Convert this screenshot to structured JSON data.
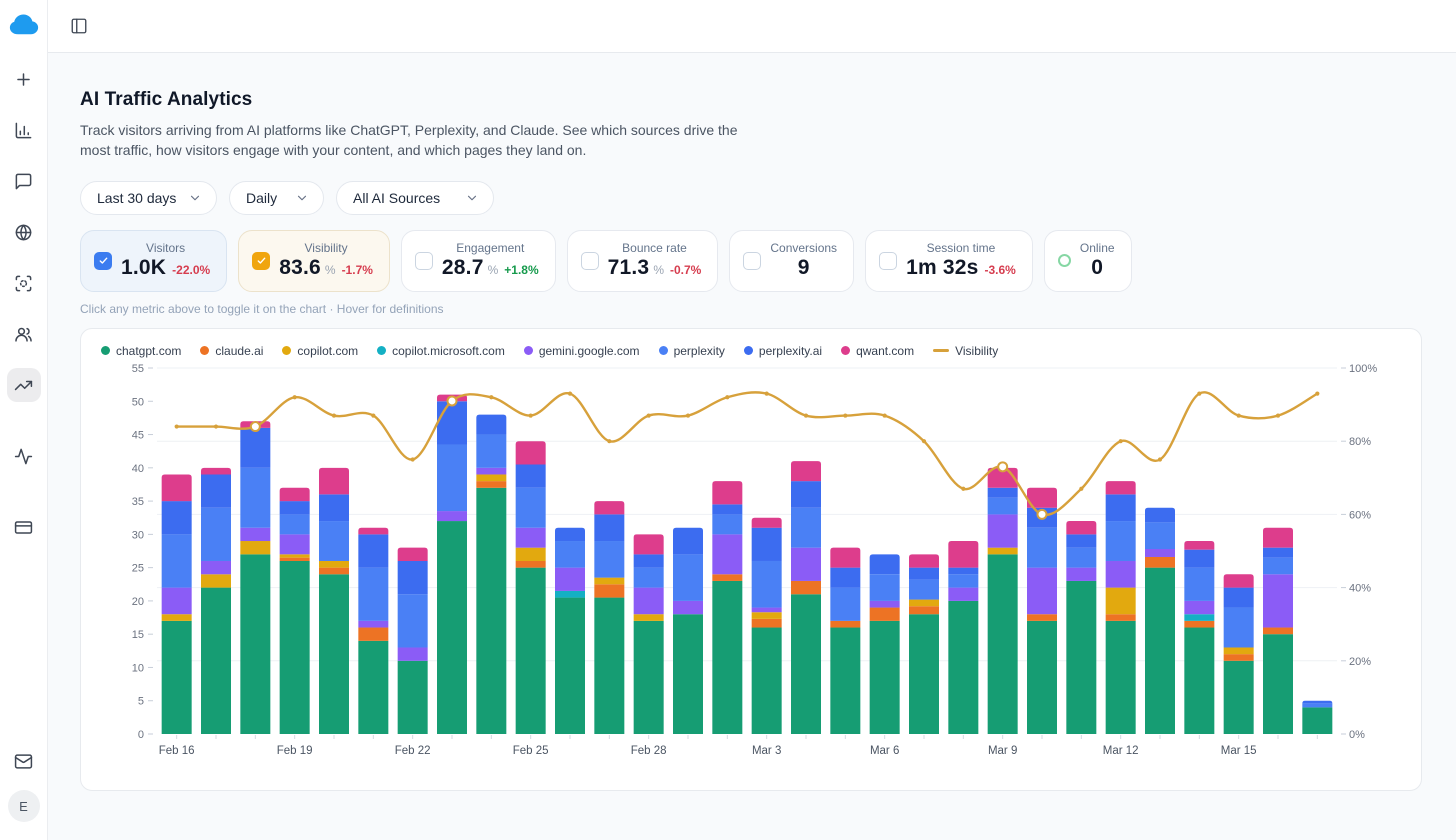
{
  "topbar": {
    "panel_toggle_icon": "panel-left-icon"
  },
  "sidebar": {
    "logo_icon": "cloud-logo",
    "logo_color": "#1e9bef",
    "icons": [
      "plus-icon",
      "chart-column-icon",
      "message-square-icon",
      "globe-icon",
      "focus-scan-icon",
      "users-icon",
      "trending-up-icon",
      "activity-icon",
      "credit-card-icon",
      "mail-icon"
    ],
    "active_icon": "trending-up-icon",
    "avatar_initial": "E"
  },
  "header": {
    "title": "AI Traffic Analytics",
    "description": "Track visitors arriving from AI platforms like ChatGPT, Perplexity, and Claude. See which sources drive the most traffic, how visitors engage with your content, and which pages they land on.",
    "filters": [
      {
        "label": "Last 30 days"
      },
      {
        "label": "Daily"
      },
      {
        "label": "All AI Sources"
      }
    ]
  },
  "metrics": {
    "hint": "Click any metric above to toggle it on the chart · Hover for definitions",
    "cards": [
      {
        "label": "Visitors",
        "value": "1.0K",
        "suffix": "",
        "delta": "-22.0%",
        "trend": "down",
        "control": "checkbox",
        "checked": true,
        "accent": "#3b7cf0",
        "selected_style": "blue"
      },
      {
        "label": "Visibility",
        "value": "83.6",
        "suffix": "%",
        "delta": "-1.7%",
        "trend": "down",
        "control": "checkbox",
        "checked": true,
        "accent": "#f0a50e",
        "selected_style": "amber"
      },
      {
        "label": "Engagement",
        "value": "28.7",
        "suffix": "%",
        "delta": "+1.8%",
        "trend": "up",
        "control": "checkbox",
        "checked": false
      },
      {
        "label": "Bounce rate",
        "value": "71.3",
        "suffix": "%",
        "delta": "-0.7%",
        "trend": "down",
        "control": "checkbox",
        "checked": false
      },
      {
        "label": "Conversions",
        "value": "9",
        "suffix": "",
        "delta": "",
        "trend": "",
        "control": "checkbox",
        "checked": false
      },
      {
        "label": "Session time",
        "value": "1m 32s",
        "suffix": "",
        "delta": "-3.6%",
        "trend": "down",
        "control": "checkbox",
        "checked": false
      },
      {
        "label": "Online",
        "value": "0",
        "suffix": "",
        "delta": "",
        "trend": "",
        "control": "status-ring",
        "ring_color": "#86d7a4"
      }
    ]
  },
  "chart_data": {
    "type": "bar",
    "subtype": "stacked-bars-with-line-overlay",
    "categories": [
      "Feb 16",
      "Feb 17",
      "Feb 18",
      "Feb 19",
      "Feb 20",
      "Feb 21",
      "Feb 22",
      "Feb 23",
      "Feb 24",
      "Feb 25",
      "Feb 26",
      "Feb 27",
      "Feb 28",
      "Mar 1",
      "Mar 2",
      "Mar 3",
      "Mar 4",
      "Mar 5",
      "Mar 6",
      "Mar 7",
      "Mar 8",
      "Mar 9",
      "Mar 10",
      "Mar 11",
      "Mar 12",
      "Mar 13",
      "Mar 14",
      "Mar 15",
      "Mar 16",
      "Mar 17"
    ],
    "x_ticks": [
      {
        "index": 0,
        "label": "Feb 16"
      },
      {
        "index": 3,
        "label": "Feb 19"
      },
      {
        "index": 6,
        "label": "Feb 22"
      },
      {
        "index": 9,
        "label": "Feb 25"
      },
      {
        "index": 12,
        "label": "Feb 28"
      },
      {
        "index": 15,
        "label": "Mar 3"
      },
      {
        "index": 18,
        "label": "Mar 6"
      },
      {
        "index": 21,
        "label": "Mar 9"
      },
      {
        "index": 24,
        "label": "Mar 12"
      },
      {
        "index": 27,
        "label": "Mar 15"
      }
    ],
    "series": [
      {
        "name": "chatgpt.com",
        "color": "#169d73",
        "values": [
          17,
          22,
          27,
          26,
          24,
          14,
          11,
          32,
          37,
          25,
          20.5,
          20.5,
          17,
          18,
          23,
          16,
          21,
          16,
          17,
          18,
          20,
          27,
          17,
          23,
          17,
          25,
          16,
          11,
          15,
          4
        ]
      },
      {
        "name": "claude.ai",
        "color": "#ed7324",
        "values": [
          0,
          0,
          0,
          0.5,
          1,
          2,
          0,
          0,
          1,
          1,
          0,
          2,
          0,
          0,
          1,
          1.3,
          2,
          1,
          2,
          1.2,
          0,
          0,
          1,
          0,
          1,
          1.6,
          1,
          1,
          1,
          0
        ]
      },
      {
        "name": "copilot.com",
        "color": "#e2a90f",
        "values": [
          1,
          2,
          2,
          0.5,
          1,
          0,
          0,
          0,
          1,
          2,
          0,
          1,
          1,
          0,
          0,
          1,
          0,
          0,
          0,
          1,
          0,
          1,
          0,
          0,
          4,
          0,
          0,
          1,
          0,
          0
        ]
      },
      {
        "name": "copilot.microsoft.com",
        "color": "#14b0c4",
        "values": [
          0,
          0,
          0,
          0,
          0,
          0,
          0,
          0,
          0,
          0,
          1,
          0,
          0,
          0,
          0,
          0,
          0,
          0,
          0,
          0,
          0,
          0,
          0,
          0,
          0,
          0,
          1,
          0,
          0,
          0
        ]
      },
      {
        "name": "gemini.google.com",
        "color": "#8b5cf6",
        "values": [
          4,
          2,
          2,
          3,
          0,
          1,
          2,
          1.5,
          1,
          3,
          3.5,
          0,
          4,
          2,
          6,
          0.7,
          5,
          0,
          1,
          0,
          2,
          5,
          7,
          2,
          4,
          1.2,
          2,
          0,
          8,
          0
        ]
      },
      {
        "name": "perplexity",
        "color": "#4a80f5",
        "values": [
          8,
          8,
          9,
          3,
          6,
          8,
          8,
          10,
          5,
          6,
          4,
          5.5,
          3,
          7,
          3,
          7,
          6,
          5,
          4,
          3,
          2,
          2.5,
          6,
          3,
          6,
          4,
          5,
          6,
          2.5,
          0.6
        ]
      },
      {
        "name": "perplexity.ai",
        "color": "#3c6cf0",
        "values": [
          5,
          5,
          6,
          2,
          4,
          5,
          5,
          6.5,
          3,
          3.5,
          2,
          4,
          2,
          4,
          1.5,
          5,
          4,
          3,
          3,
          1.8,
          1,
          1.5,
          3,
          2,
          4,
          2.2,
          2.7,
          3,
          1.5,
          0.4
        ]
      },
      {
        "name": "qwant.com",
        "color": "#dd3d8c",
        "values": [
          4,
          1,
          1,
          2,
          4,
          1,
          2,
          1,
          0,
          3.5,
          0,
          2,
          3,
          0,
          3.5,
          1.5,
          3,
          3,
          0,
          2,
          4,
          3,
          3,
          2,
          2,
          0,
          1.3,
          2,
          3,
          0
        ]
      }
    ],
    "line": {
      "name": "Visibility",
      "color": "#d7a13b",
      "axis": "right",
      "unit": "%",
      "values": [
        84,
        84,
        84,
        92,
        87,
        87,
        75,
        91,
        92,
        87,
        93,
        80,
        87,
        87,
        92,
        93,
        87,
        87,
        87,
        80,
        67,
        73,
        60,
        67,
        80,
        75,
        93,
        87,
        87,
        93
      ],
      "highlight_indices": [
        2,
        7,
        21,
        22
      ]
    },
    "left_axis": {
      "ticks": [
        0,
        5,
        10,
        15,
        20,
        25,
        30,
        35,
        40,
        45,
        50,
        55
      ],
      "max": 55
    },
    "right_axis": {
      "ticks": [
        0,
        20,
        40,
        60,
        80,
        100
      ],
      "max": 100,
      "suffix": "%"
    },
    "grid_percent_lines": [
      20,
      40,
      60,
      80,
      100
    ],
    "legend_position": "top-left",
    "title": ""
  }
}
